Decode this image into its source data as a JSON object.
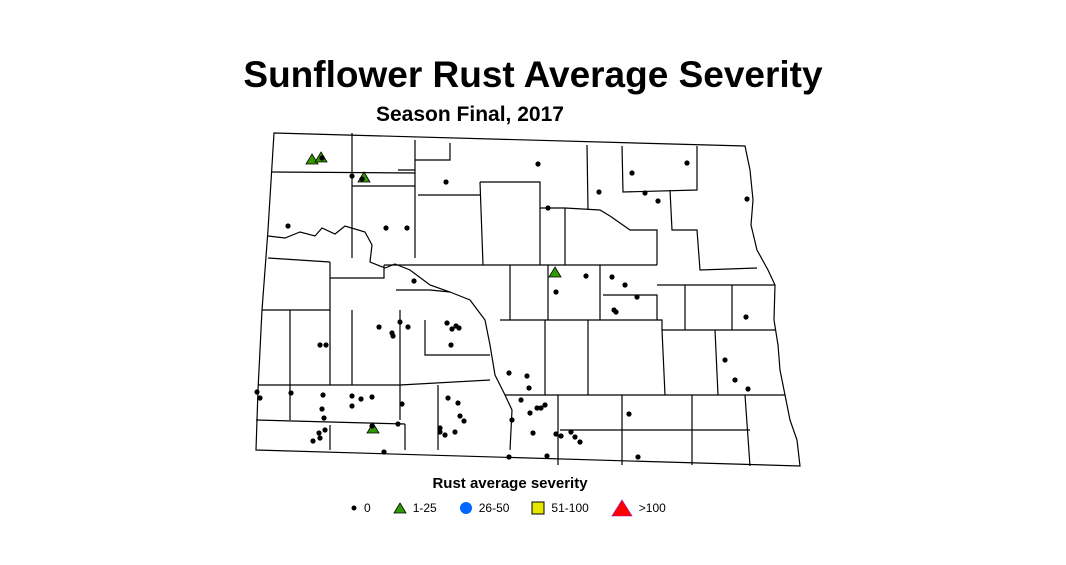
{
  "title": "Sunflower Rust Average Severity",
  "subtitle": "Season Final, 2017",
  "legend": {
    "title": "Rust average severity",
    "items": [
      {
        "label": "0",
        "symbol": "small-dot",
        "color": "#000000"
      },
      {
        "label": "1-25",
        "symbol": "triangle",
        "color": "#339900"
      },
      {
        "label": "26-50",
        "symbol": "circle",
        "color": "#0066ff"
      },
      {
        "label": "51-100",
        "symbol": "square",
        "color": "#e6e600"
      },
      {
        "label": ">100",
        "symbol": "large-triangle",
        "color": "#ff0000"
      }
    ]
  }
}
